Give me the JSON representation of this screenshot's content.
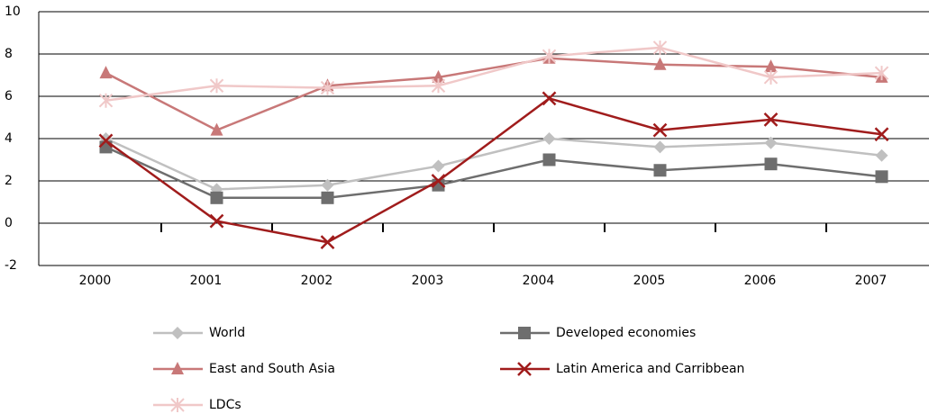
{
  "chart_data": {
    "type": "line",
    "categories": [
      "2000",
      "2001",
      "2002",
      "2003",
      "2004",
      "2005",
      "2006",
      "2007"
    ],
    "series": [
      {
        "name": "World",
        "color": "#c0c0c0",
        "values": [
          4.0,
          1.6,
          1.8,
          2.7,
          4.0,
          3.6,
          3.8,
          3.2
        ]
      },
      {
        "name": "Developed economies",
        "color": "#6e6e6e",
        "values": [
          3.6,
          1.2,
          1.2,
          1.8,
          3.0,
          2.5,
          2.8,
          2.2
        ]
      },
      {
        "name": "East and South Asia",
        "color": "#c87878",
        "values": [
          7.1,
          4.4,
          6.5,
          6.9,
          7.8,
          7.5,
          7.4,
          6.9
        ]
      },
      {
        "name": "Latin America and Carribbean",
        "color": "#a01c1c",
        "values": [
          3.9,
          0.1,
          -0.9,
          2.0,
          5.9,
          4.4,
          4.9,
          4.2
        ]
      },
      {
        "name": "LDCs",
        "color": "#f0c8c8",
        "values": [
          5.8,
          6.5,
          6.4,
          6.5,
          7.9,
          8.3,
          6.9,
          7.1
        ]
      }
    ],
    "ylim": [
      -2,
      10
    ],
    "yticks": [
      -2,
      0,
      2,
      4,
      6,
      8,
      10
    ],
    "grid": true
  }
}
